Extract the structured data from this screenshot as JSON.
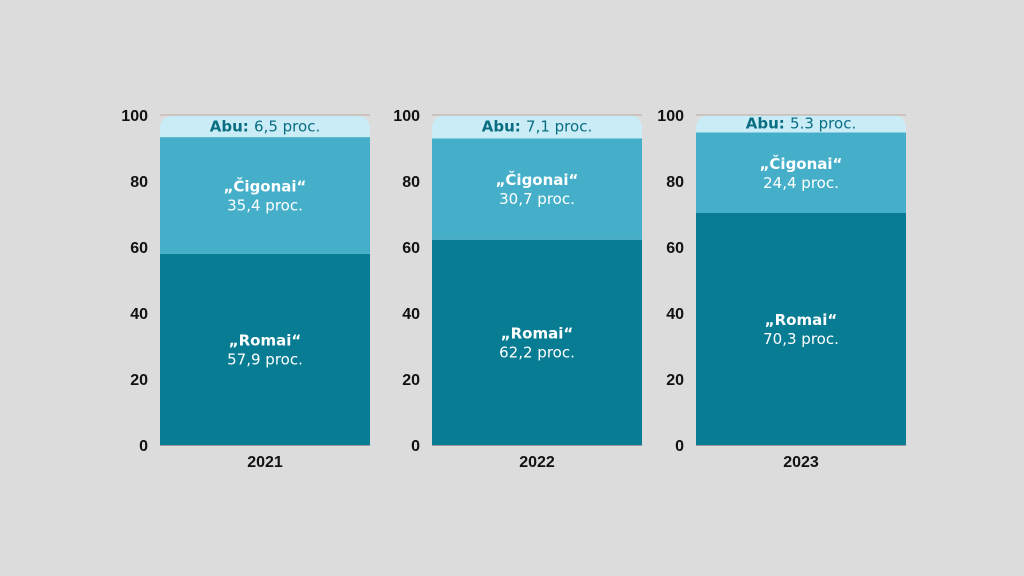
{
  "chart_data": {
    "type": "bar",
    "stacked": true,
    "categories": [
      "2021",
      "2022",
      "2023"
    ],
    "y_ticks": [
      "0",
      "20",
      "40",
      "60",
      "80",
      "100"
    ],
    "ylim": [
      0,
      100
    ],
    "grid": false,
    "title": "",
    "xlabel": "",
    "ylabel": "",
    "series": [
      {
        "key": "romai",
        "name": "„Romai“",
        "values": [
          57.9,
          62.2,
          70.3
        ],
        "labels": [
          "57,9 proc.",
          "62,2 proc.",
          "70,3 proc."
        ],
        "color": "#077c93",
        "name_color": "#ffffff",
        "value_color": "#ffffff"
      },
      {
        "key": "cigonai",
        "name": "„Čigonai“",
        "values": [
          35.4,
          30.7,
          24.4
        ],
        "labels": [
          "35,4 proc.",
          "30,7 proc.",
          "24,4 proc."
        ],
        "color": "#45afca",
        "name_color": "#ffffff",
        "value_color": "#ffffff"
      },
      {
        "key": "abu",
        "name": "Abu:",
        "values": [
          6.5,
          7.1,
          5.3
        ],
        "labels": [
          "6,5 proc.",
          "7,1 proc.",
          "5.3 proc."
        ],
        "color": "#c9ecf7",
        "name_color": "#0a6e82",
        "value_color": "#0a6e82"
      }
    ]
  }
}
